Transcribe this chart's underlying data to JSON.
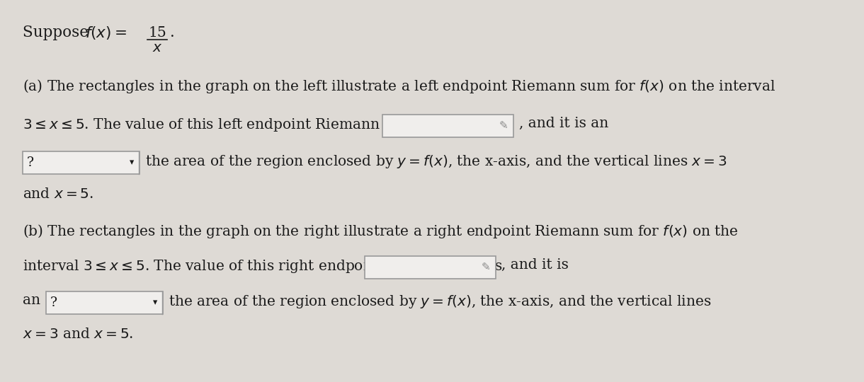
{
  "bg_color": "#dedad5",
  "text_color": "#1a1a1a",
  "input_box_color": "#f0eeec",
  "input_box_border": "#999999",
  "font_size": 14.5,
  "lines": {
    "title_suppose": "Suppose ",
    "title_fx": "$f(x) = $",
    "title_num": "15",
    "title_den": "$x$",
    "title_dot": ".",
    "a_line1": "(a) The rectangles in the graph on the left illustrate a left endpoint Riemann sum for $f(x)$ on the interval",
    "a_line2_pre": "$3 \\leq x \\leq 5$. The value of this left endpoint Riemann sum is",
    "a_line2_post": ", and it is an",
    "a_line3_post": "the area of the region enclosed by $y = f(x)$, the x-axis, and the vertical lines $x = 3$",
    "a_line4": "and $x = 5$.",
    "b_line1": "(b) The rectangles in the graph on the right illustrate a right endpoint Riemann sum for $f(x)$ on the",
    "b_line2_pre": "interval $3 \\leq x \\leq 5$. The value of this right endpoint Riemann sum is",
    "b_line2_post": ", and it is",
    "b_line3_pre": "an",
    "b_line3_post": "the area of the region enclosed by $y = f(x)$, the x-axis, and the vertical lines",
    "b_line4": "$x = 3$ and $x = 5$."
  }
}
